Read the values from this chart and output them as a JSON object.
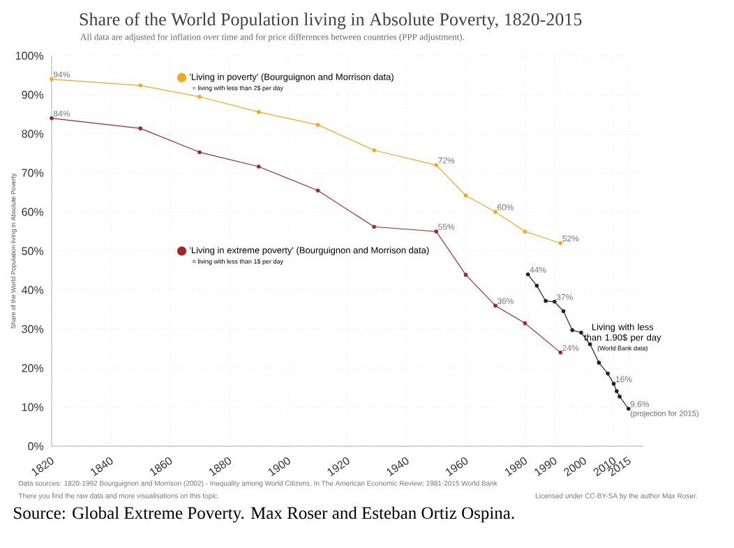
{
  "chart_data": {
    "type": "line",
    "title": "Share of the World Population living in Absolute Poverty, 1820-2015",
    "subtitle": "All data are adjusted for inflation over time and for price differences between countries (PPP adjustment).",
    "ylabel": "Share of the World Population living in Absolute Poverty",
    "xlim": [
      1820,
      2020
    ],
    "ylim": [
      0,
      100
    ],
    "xticks": [
      1820,
      1840,
      1860,
      1880,
      1900,
      1920,
      1940,
      1960,
      1980,
      1990,
      2000,
      2010,
      2015
    ],
    "yticks": [
      {
        "value": 0,
        "label": "0%"
      },
      {
        "value": 10,
        "label": "10%"
      },
      {
        "value": 20,
        "label": "20%"
      },
      {
        "value": 30,
        "label": "30%"
      },
      {
        "value": 40,
        "label": "40%"
      },
      {
        "value": 50,
        "label": "50%"
      },
      {
        "value": 60,
        "label": "60%"
      },
      {
        "value": 70,
        "label": "70%"
      },
      {
        "value": 80,
        "label": "80%"
      },
      {
        "value": 90,
        "label": "90%"
      },
      {
        "value": 100,
        "label": "100%"
      }
    ],
    "grid": true,
    "marker": "circle",
    "line_style": "solid",
    "legend": "top left",
    "series": [
      {
        "name": "'Living in poverty' (Bourguignon and Morrison data)",
        "color": "#f3a81c",
        "x": [
          1820,
          1850,
          1870,
          1890,
          1910,
          1929,
          1950,
          1960,
          1970,
          1980,
          1992
        ],
        "values": [
          94,
          92.4,
          89.5,
          85.6,
          82.3,
          75.8,
          72,
          64.2,
          60,
          55,
          52
        ],
        "value_labels": [
          "94%",
          null,
          null,
          null,
          null,
          null,
          "72%",
          null,
          "60%",
          null,
          "52%"
        ]
      },
      {
        "name": "'Living in extreme poverty' (Bourguignon and Morrison data)",
        "color": "#a3262a",
        "x": [
          1820,
          1850,
          1870,
          1890,
          1910,
          1929,
          1950,
          1960,
          1970,
          1980,
          1992
        ],
        "values": [
          84,
          81.4,
          75.3,
          71.6,
          65.5,
          56.2,
          55,
          43.9,
          36,
          31.5,
          24
        ],
        "value_labels": [
          "84%",
          null,
          null,
          null,
          null,
          null,
          "55%",
          null,
          "36%",
          null,
          "24%"
        ]
      },
      {
        "name": "Living with less than 1.90$ per day",
        "color": "#222222",
        "x": [
          1981,
          1984,
          1987,
          1990,
          1993,
          1996,
          1999,
          2002,
          2005,
          2008,
          2010,
          2011,
          2012,
          2015
        ],
        "values": [
          44,
          41.1,
          37.2,
          37,
          34.6,
          29.7,
          29.1,
          26.1,
          21.4,
          18.6,
          16,
          14.1,
          12.7,
          9.6
        ],
        "value_labels": [
          "44%",
          null,
          null,
          "37%",
          null,
          null,
          null,
          null,
          null,
          null,
          "16%",
          null,
          null,
          "9.6%"
        ]
      }
    ],
    "annotations": [
      "= living with less than 2$ per day",
      "= living with less than 1$ per day",
      "(World Bank data)",
      {
        "text": "(projection for 2015)",
        "x": 2015,
        "y": 9.6
      },
      "Data sources: 1820-1992 Bourguignon and Morrison (2002) - Inequality among World Citizens, In The American Economic Review; 1981-2015 World Bank",
      "There you find the raw data and more visualisations on this topic.",
      "Licensed under CC-BY-SA by the author Max Roser.",
      "Source: Global Extreme Poverty. Max Roser and Esteban Ortiz Ospina."
    ]
  }
}
